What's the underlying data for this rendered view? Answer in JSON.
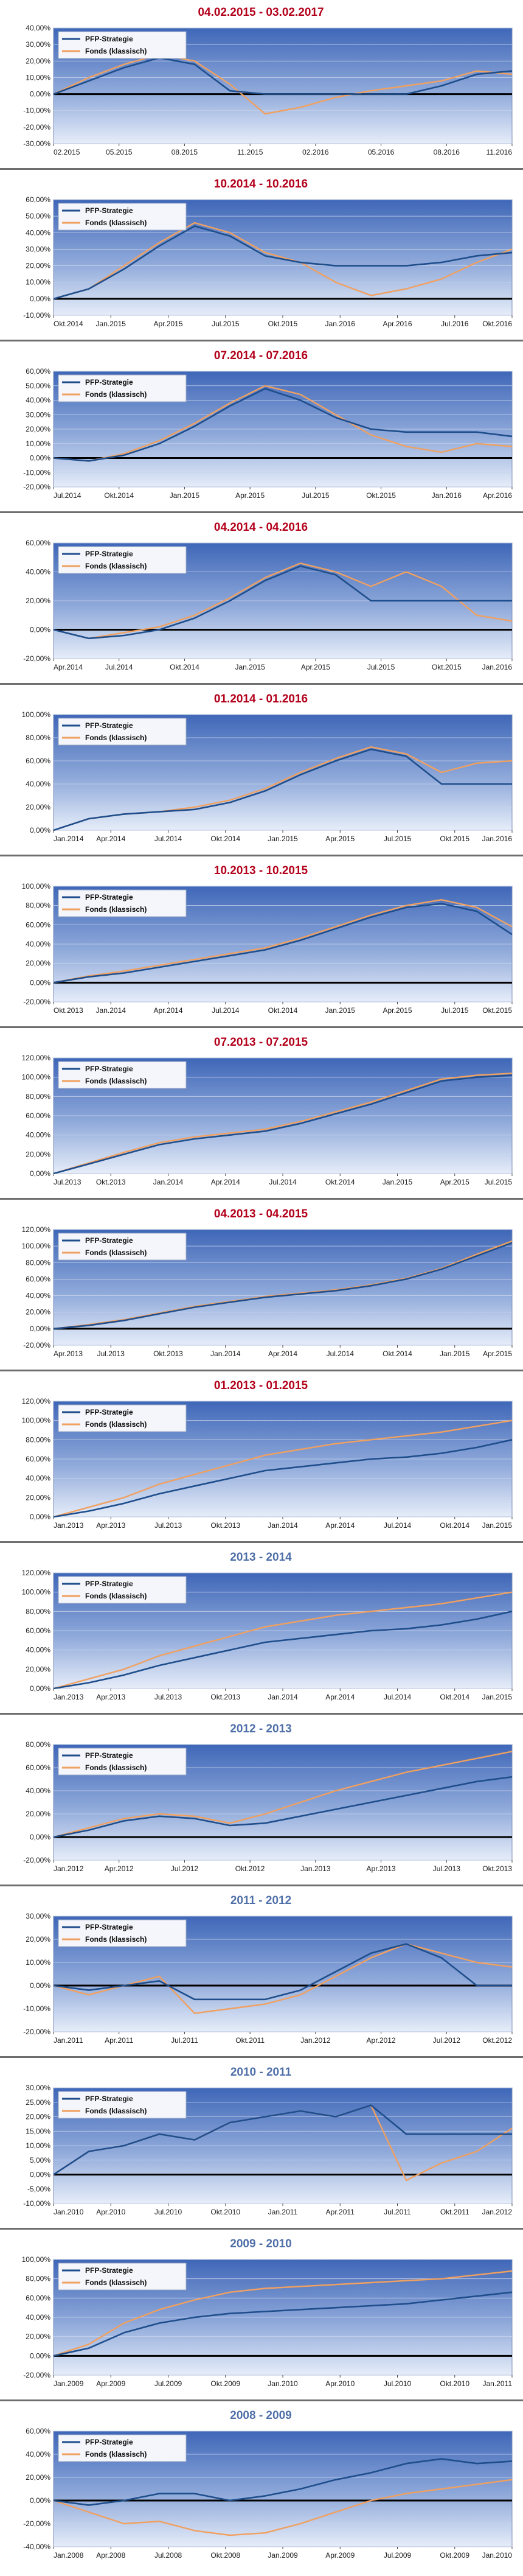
{
  "colors": {
    "strategy": "#1f4e8c",
    "fund": "#f0a060",
    "title_recent": "#b3001b",
    "title_year": "#4f6fa8"
  },
  "chart_data": [
    {
      "type": "line",
      "title": "04.02.2015 - 03.02.2017",
      "title_color": "recent",
      "ylim": [
        -30,
        40
      ],
      "yticks": [
        -30,
        -20,
        -10,
        0,
        10,
        20,
        30,
        40
      ],
      "xticks": [
        "02.2015",
        "05.2015",
        "08.2015",
        "11.2015",
        "02.2016",
        "05.2016",
        "08.2016",
        "11.2016"
      ],
      "series": [
        {
          "name": "PFP-Strategie",
          "values": [
            0,
            8,
            16,
            22,
            18,
            2,
            0,
            0,
            0,
            0,
            0,
            5,
            12,
            14
          ]
        },
        {
          "name": "Fonds (klassisch)",
          "values": [
            0,
            10,
            18,
            24,
            20,
            6,
            -12,
            -8,
            -2,
            2,
            5,
            8,
            14,
            12
          ]
        }
      ]
    },
    {
      "type": "line",
      "title": "10.2014 - 10.2016",
      "title_color": "recent",
      "ylim": [
        -10,
        60
      ],
      "yticks": [
        -10,
        0,
        10,
        20,
        30,
        40,
        50,
        60
      ],
      "xticks": [
        "Okt.2014",
        "Jan.2015",
        "Apr.2015",
        "Jul.2015",
        "Okt.2015",
        "Jan.2016",
        "Apr.2016",
        "Jul.2016",
        "Okt.2016"
      ],
      "series": [
        {
          "name": "PFP-Strategie",
          "values": [
            0,
            6,
            18,
            32,
            44,
            38,
            26,
            22,
            20,
            20,
            20,
            22,
            26,
            28
          ]
        },
        {
          "name": "Fonds (klassisch)",
          "values": [
            0,
            6,
            20,
            34,
            46,
            40,
            28,
            22,
            10,
            2,
            6,
            12,
            22,
            30
          ]
        }
      ]
    },
    {
      "type": "line",
      "title": "07.2014 - 07.2016",
      "title_color": "recent",
      "ylim": [
        -20,
        60
      ],
      "yticks": [
        -20,
        -10,
        0,
        10,
        20,
        30,
        40,
        50,
        60
      ],
      "xticks": [
        "Jul.2014",
        "Okt.2014",
        "Jan.2015",
        "Apr.2015",
        "Jul.2015",
        "Okt.2015",
        "Jan.2016",
        "Apr.2016"
      ],
      "series": [
        {
          "name": "PFP-Strategie",
          "values": [
            0,
            -2,
            2,
            10,
            22,
            36,
            48,
            40,
            28,
            20,
            18,
            18,
            18,
            15
          ]
        },
        {
          "name": "Fonds (klassisch)",
          "values": [
            0,
            -2,
            3,
            12,
            24,
            38,
            50,
            44,
            30,
            16,
            8,
            4,
            10,
            8
          ]
        }
      ]
    },
    {
      "type": "line",
      "title": "04.2014 - 04.2016",
      "title_color": "recent",
      "ylim": [
        -20,
        60
      ],
      "yticks": [
        -20,
        0,
        20,
        40,
        60
      ],
      "xticks": [
        "Apr.2014",
        "Jul.2014",
        "Okt.2014",
        "Jan.2015",
        "Apr.2015",
        "Jul.2015",
        "Okt.2015",
        "Jan.2016"
      ],
      "series": [
        {
          "name": "PFP-Strategie",
          "values": [
            0,
            -6,
            -4,
            0,
            8,
            20,
            34,
            44,
            38,
            20,
            20,
            20,
            20,
            20
          ]
        },
        {
          "name": "Fonds (klassisch)",
          "values": [
            0,
            -6,
            -2,
            2,
            10,
            22,
            36,
            46,
            40,
            30,
            40,
            30,
            10,
            6
          ]
        }
      ]
    },
    {
      "type": "line",
      "title": "01.2014 - 01.2016",
      "title_color": "recent",
      "ylim": [
        0,
        100
      ],
      "yticks": [
        0,
        20,
        40,
        60,
        80,
        100
      ],
      "xticks": [
        "Jan.2014",
        "Apr.2014",
        "Jul.2014",
        "Okt.2014",
        "Jan.2015",
        "Apr.2015",
        "Jul.2015",
        "Okt.2015",
        "Jan.2016"
      ],
      "series": [
        {
          "name": "PFP-Strategie",
          "values": [
            0,
            10,
            14,
            16,
            18,
            24,
            34,
            48,
            60,
            70,
            64,
            40,
            40,
            40
          ]
        },
        {
          "name": "Fonds (klassisch)",
          "values": [
            0,
            10,
            14,
            16,
            20,
            26,
            36,
            50,
            62,
            72,
            66,
            50,
            58,
            60
          ]
        }
      ]
    },
    {
      "type": "line",
      "title": "10.2013 - 10.2015",
      "title_color": "recent",
      "ylim": [
        -20,
        100
      ],
      "yticks": [
        -20,
        0,
        20,
        40,
        60,
        80,
        100
      ],
      "xticks": [
        "Okt.2013",
        "Jan.2014",
        "Apr.2014",
        "Jul.2014",
        "Okt.2014",
        "Jan.2015",
        "Apr.2015",
        "Jul.2015",
        "Okt.2015"
      ],
      "series": [
        {
          "name": "PFP-Strategie",
          "values": [
            0,
            6,
            10,
            16,
            22,
            28,
            34,
            44,
            56,
            68,
            78,
            82,
            74,
            50
          ]
        },
        {
          "name": "Fonds (klassisch)",
          "values": [
            0,
            7,
            12,
            18,
            24,
            30,
            36,
            46,
            58,
            70,
            80,
            86,
            78,
            58
          ]
        }
      ]
    },
    {
      "type": "line",
      "title": "07.2013 - 07.2015",
      "title_color": "recent",
      "ylim": [
        0,
        120
      ],
      "yticks": [
        0,
        20,
        40,
        60,
        80,
        100,
        120
      ],
      "xticks": [
        "Jul.2013",
        "Okt.2013",
        "Jan.2014",
        "Apr.2014",
        "Jul.2014",
        "Okt.2014",
        "Jan.2015",
        "Apr.2015",
        "Jul.2015"
      ],
      "series": [
        {
          "name": "PFP-Strategie",
          "values": [
            0,
            10,
            20,
            30,
            36,
            40,
            44,
            52,
            62,
            72,
            84,
            96,
            100,
            102
          ]
        },
        {
          "name": "Fonds (klassisch)",
          "values": [
            0,
            11,
            22,
            32,
            38,
            42,
            46,
            54,
            64,
            74,
            86,
            98,
            102,
            104
          ]
        }
      ]
    },
    {
      "type": "line",
      "title": "04.2013 - 04.2015",
      "title_color": "recent",
      "ylim": [
        -20,
        120
      ],
      "yticks": [
        -20,
        0,
        20,
        40,
        60,
        80,
        100,
        120
      ],
      "xticks": [
        "Apr.2013",
        "Jul.2013",
        "Okt.2013",
        "Jan.2014",
        "Apr.2014",
        "Jul.2014",
        "Okt.2014",
        "Jan.2015",
        "Apr.2015"
      ],
      "series": [
        {
          "name": "PFP-Strategie",
          "values": [
            0,
            4,
            10,
            18,
            26,
            32,
            38,
            42,
            46,
            52,
            60,
            72,
            88,
            104
          ]
        },
        {
          "name": "Fonds (klassisch)",
          "values": [
            0,
            5,
            11,
            19,
            27,
            33,
            39,
            43,
            47,
            53,
            61,
            73,
            90,
            106
          ]
        }
      ]
    },
    {
      "type": "line",
      "title": "01.2013 - 01.2015",
      "title_color": "recent",
      "ylim": [
        0,
        120
      ],
      "yticks": [
        0,
        20,
        40,
        60,
        80,
        100,
        120
      ],
      "xticks": [
        "Jan.2013",
        "Apr.2013",
        "Jul.2013",
        "Okt.2013",
        "Jan.2014",
        "Apr.2014",
        "Jul.2014",
        "Okt.2014",
        "Jan.2015"
      ],
      "series": [
        {
          "name": "PFP-Strategie",
          "values": [
            0,
            6,
            14,
            24,
            32,
            40,
            48,
            52,
            56,
            60,
            62,
            66,
            72,
            80
          ]
        },
        {
          "name": "Fonds (klassisch)",
          "values": [
            0,
            10,
            20,
            34,
            44,
            54,
            64,
            70,
            76,
            80,
            84,
            88,
            94,
            100
          ]
        }
      ]
    },
    {
      "type": "line",
      "title": "2013 - 2014",
      "title_color": "year",
      "ylim": [
        0,
        120
      ],
      "yticks": [
        0,
        20,
        40,
        60,
        80,
        100,
        120
      ],
      "xticks": [
        "Jan.2013",
        "Apr.2013",
        "Jul.2013",
        "Okt.2013",
        "Jan.2014",
        "Apr.2014",
        "Jul.2014",
        "Okt.2014",
        "Jan.2015"
      ],
      "series": [
        {
          "name": "PFP-Strategie",
          "values": [
            0,
            6,
            14,
            24,
            32,
            40,
            48,
            52,
            56,
            60,
            62,
            66,
            72,
            80
          ]
        },
        {
          "name": "Fonds (klassisch)",
          "values": [
            0,
            10,
            20,
            34,
            44,
            54,
            64,
            70,
            76,
            80,
            84,
            88,
            94,
            100
          ]
        }
      ]
    },
    {
      "type": "line",
      "title": "2012 - 2013",
      "title_color": "year",
      "ylim": [
        -20,
        80
      ],
      "yticks": [
        -20,
        0,
        20,
        40,
        60,
        80
      ],
      "xticks": [
        "Jan.2012",
        "Apr.2012",
        "Jul.2012",
        "Okt.2012",
        "Jan.2013",
        "Apr.2013",
        "Jul.2013",
        "Okt.2013"
      ],
      "series": [
        {
          "name": "PFP-Strategie",
          "values": [
            0,
            6,
            14,
            18,
            16,
            10,
            12,
            18,
            24,
            30,
            36,
            42,
            48,
            52
          ]
        },
        {
          "name": "Fonds (klassisch)",
          "values": [
            0,
            8,
            16,
            20,
            18,
            12,
            20,
            30,
            40,
            48,
            56,
            62,
            68,
            74
          ]
        }
      ]
    },
    {
      "type": "line",
      "title": "2011 - 2012",
      "title_color": "year",
      "ylim": [
        -20,
        30
      ],
      "yticks": [
        -20,
        -10,
        0,
        10,
        20,
        30
      ],
      "xticks": [
        "Jan.2011",
        "Apr.2011",
        "Jul.2011",
        "Okt.2011",
        "Jan.2012",
        "Apr.2012",
        "Jul.2012",
        "Okt.2012"
      ],
      "series": [
        {
          "name": "PFP-Strategie",
          "values": [
            0,
            -2,
            0,
            2,
            -6,
            -6,
            -6,
            -2,
            6,
            14,
            18,
            12,
            0,
            0
          ]
        },
        {
          "name": "Fonds (klassisch)",
          "values": [
            0,
            -4,
            0,
            4,
            -12,
            -10,
            -8,
            -4,
            4,
            12,
            18,
            14,
            10,
            8
          ]
        }
      ]
    },
    {
      "type": "line",
      "title": "2010 - 2011",
      "title_color": "year",
      "ylim": [
        -10,
        30
      ],
      "yticks": [
        -10,
        -5,
        0,
        5,
        10,
        15,
        20,
        25,
        30
      ],
      "xticks": [
        "Jan.2010",
        "Apr.2010",
        "Jul.2010",
        "Okt.2010",
        "Jan.2011",
        "Apr.2011",
        "Jul.2011",
        "Okt.2011",
        "Jan.2012"
      ],
      "series": [
        {
          "name": "PFP-Strategie",
          "values": [
            0,
            8,
            10,
            14,
            12,
            18,
            20,
            22,
            20,
            24,
            14,
            14,
            14,
            14
          ]
        },
        {
          "name": "Fonds (klassisch)",
          "values": [
            0,
            8,
            10,
            14,
            12,
            18,
            20,
            22,
            20,
            24,
            -2,
            4,
            8,
            16
          ]
        }
      ]
    },
    {
      "type": "line",
      "title": "2009 - 2010",
      "title_color": "year",
      "ylim": [
        -20,
        100
      ],
      "yticks": [
        -20,
        0,
        20,
        40,
        60,
        80,
        100
      ],
      "xticks": [
        "Jan.2009",
        "Apr.2009",
        "Jul.2009",
        "Okt.2009",
        "Jan.2010",
        "Apr.2010",
        "Jul.2010",
        "Okt.2010",
        "Jan.2011"
      ],
      "series": [
        {
          "name": "PFP-Strategie",
          "values": [
            0,
            8,
            24,
            34,
            40,
            44,
            46,
            48,
            50,
            52,
            54,
            58,
            62,
            66
          ]
        },
        {
          "name": "Fonds (klassisch)",
          "values": [
            0,
            12,
            34,
            48,
            58,
            66,
            70,
            72,
            74,
            76,
            78,
            80,
            84,
            88
          ]
        }
      ]
    },
    {
      "type": "line",
      "title": "2008 - 2009",
      "title_color": "year",
      "ylim": [
        -40,
        60
      ],
      "yticks": [
        -40,
        -20,
        0,
        20,
        40,
        60
      ],
      "xticks": [
        "Jan.2008",
        "Apr.2008",
        "Jul.2008",
        "Okt.2008",
        "Jan.2009",
        "Apr.2009",
        "Jul.2009",
        "Okt.2009",
        "Jan.2010"
      ],
      "series": [
        {
          "name": "PFP-Strategie",
          "values": [
            0,
            -4,
            0,
            6,
            6,
            0,
            4,
            10,
            18,
            24,
            32,
            36,
            32,
            34
          ]
        },
        {
          "name": "Fonds (klassisch)",
          "values": [
            0,
            -10,
            -20,
            -18,
            -26,
            -30,
            -28,
            -20,
            -10,
            0,
            6,
            10,
            14,
            18
          ]
        }
      ]
    }
  ]
}
